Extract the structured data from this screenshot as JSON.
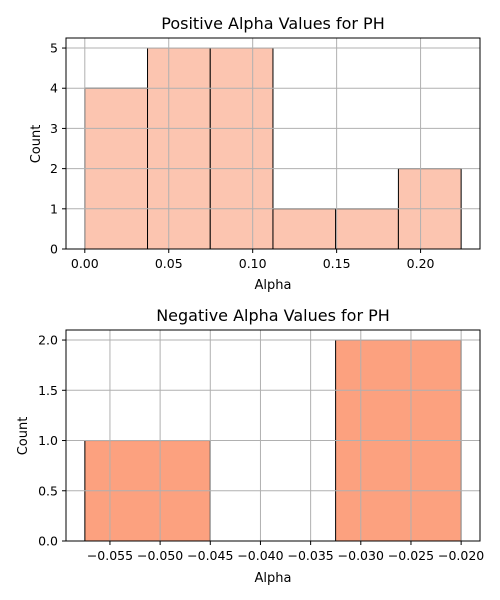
{
  "chart_data": [
    {
      "type": "bar",
      "title": "Positive Alpha Values for PH",
      "xlabel": "Alpha",
      "ylabel": "Count",
      "bin_edges": [
        0.0,
        0.03736,
        0.07472,
        0.11208,
        0.14944,
        0.1868,
        0.22416
      ],
      "values": [
        4,
        5,
        5,
        1,
        1,
        2
      ],
      "xlim": [
        -0.0112,
        0.2354
      ],
      "ylim": [
        0,
        5.25
      ],
      "xticks": [
        0.0,
        0.05,
        0.1,
        0.15,
        0.2
      ],
      "xtick_labels": [
        "0.00",
        "0.05",
        "0.10",
        "0.15",
        "0.20"
      ],
      "yticks": [
        0,
        1,
        2,
        3,
        4,
        5
      ],
      "ytick_labels": [
        "0",
        "1",
        "2",
        "3",
        "4",
        "5"
      ],
      "grid": true,
      "bar_color": "#fcc5b0",
      "edge_color": "#000000"
    },
    {
      "type": "bar",
      "title": "Negative Alpha Values for PH",
      "xlabel": "Alpha",
      "ylabel": "Count",
      "bin_edges": [
        -0.0575,
        -0.04501,
        -0.03251,
        -0.02
      ],
      "values": [
        1,
        0,
        2
      ],
      "xlim": [
        -0.05938,
        -0.01812
      ],
      "ylim": [
        0,
        2.1
      ],
      "xticks": [
        -0.055,
        -0.05,
        -0.045,
        -0.04,
        -0.035,
        -0.03,
        -0.025,
        -0.02
      ],
      "xtick_labels": [
        "−0.055",
        "−0.050",
        "−0.045",
        "−0.040",
        "−0.035",
        "−0.030",
        "−0.025",
        "−0.020"
      ],
      "yticks": [
        0,
        0.5,
        1,
        1.5,
        2
      ],
      "ytick_labels": [
        "0.0",
        "0.5",
        "1.0",
        "1.5",
        "2.0"
      ],
      "grid": true,
      "bar_color": "#fca17f",
      "edge_color": "#000000"
    }
  ]
}
